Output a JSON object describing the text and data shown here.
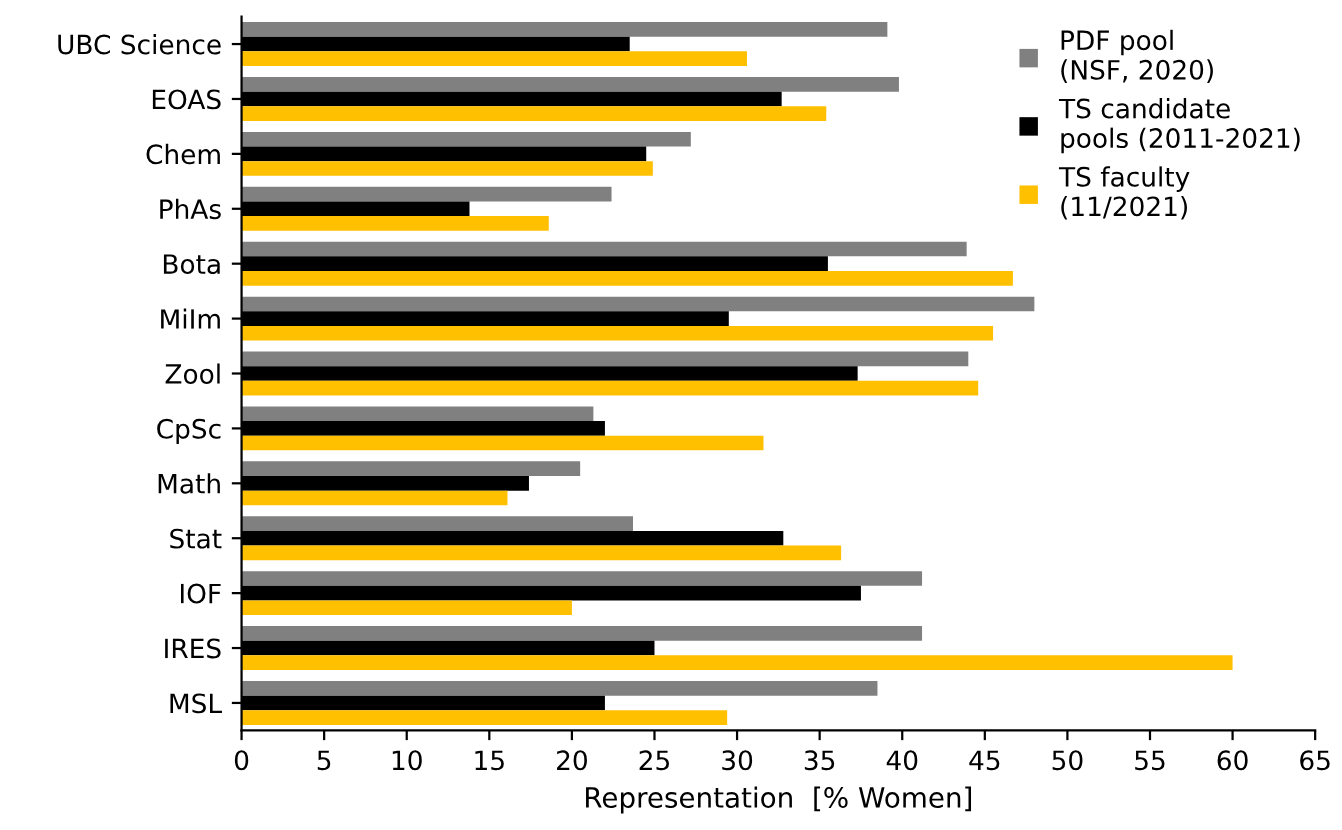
{
  "chart_data": {
    "type": "bar",
    "orientation": "horizontal",
    "xlabel": "Representation  [% Women]",
    "categories": [
      "UBC Science",
      "EOAS",
      "Chem",
      "PhAs",
      "Bota",
      "MiIm",
      "Zool",
      "CpSc",
      "Math",
      "Stat",
      "IOF",
      "IRES",
      "MSL"
    ],
    "series": [
      {
        "name": "PDF pool\n(NSF, 2020)",
        "color": "#808080",
        "values": [
          39.1,
          39.8,
          27.2,
          22.4,
          43.9,
          48.0,
          44.0,
          21.3,
          20.5,
          23.7,
          41.2,
          41.2,
          38.5
        ]
      },
      {
        "name": "TS candidate\npools (2011-2021)",
        "color": "#000000",
        "values": [
          23.5,
          32.7,
          24.5,
          13.8,
          35.5,
          29.5,
          37.3,
          22.0,
          17.4,
          32.8,
          37.5,
          25.0,
          22.0
        ]
      },
      {
        "name": "TS faculty\n(11/2021)",
        "color": "#ffc000",
        "values": [
          30.6,
          35.4,
          24.9,
          18.6,
          46.7,
          45.5,
          44.6,
          31.6,
          16.1,
          36.3,
          20.0,
          60.0,
          29.4
        ]
      }
    ],
    "xlim": [
      0,
      65
    ],
    "xticks": [
      0,
      5,
      10,
      15,
      20,
      25,
      30,
      35,
      40,
      45,
      50,
      55,
      60,
      65
    ],
    "legend": "top right",
    "grid": false
  }
}
